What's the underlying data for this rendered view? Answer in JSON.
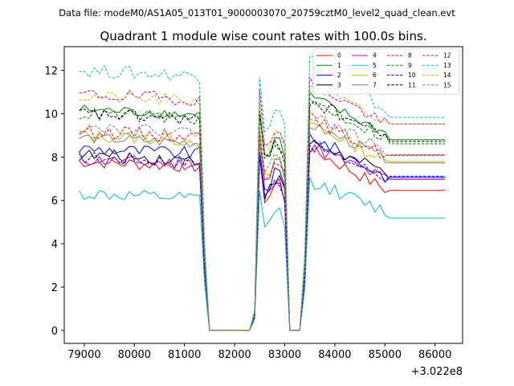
{
  "chart_data": {
    "type": "line",
    "suptitle": "Data file: modeM0/AS1A05_013T01_9000003070_20759cztM0_level2_quad_clean.evt",
    "title": "Quadrant 1 module wise count rates with 100.0s bins.",
    "xlabel": "",
    "ylabel": "",
    "x_offset_label": "+3.022e8",
    "xlim": [
      78600,
      86550
    ],
    "ylim": [
      -0.6,
      13.1
    ],
    "x_ticks": [
      79000,
      80000,
      81000,
      82000,
      83000,
      84000,
      85000,
      86000
    ],
    "y_ticks": [
      0,
      2,
      4,
      6,
      8,
      10,
      12
    ],
    "x_tick_labels": [
      "79000",
      "80000",
      "81000",
      "82000",
      "83000",
      "84000",
      "85000",
      "86000"
    ],
    "y_tick_labels": [
      "0",
      "2",
      "4",
      "6",
      "8",
      "10",
      "12"
    ],
    "x_start": 78900,
    "x_step": 100,
    "n_points": 74,
    "profile": {
      "segment1_points": 25,
      "drop_points": [
        0.35
      ],
      "zero_points": 9,
      "segment2_values": [
        0.08,
        1.0,
        0.78,
        0.8,
        0.86,
        0.86,
        0.78
      ],
      "gap_points": 3,
      "segment3_rise": [
        0.3
      ],
      "segment3_points": 17
    },
    "series": [
      {
        "name": "0",
        "color": "#ff0000",
        "dash": "solid",
        "level": 7.8,
        "amp": 0.3,
        "end_level": 6.4
      },
      {
        "name": "1",
        "color": "#008000",
        "dash": "solid",
        "level": 10.2,
        "amp": 0.25,
        "end_level": 9.0
      },
      {
        "name": "2",
        "color": "#0000ff",
        "dash": "solid",
        "level": 8.4,
        "amp": 0.3,
        "end_level": 7.0
      },
      {
        "name": "3",
        "color": "#000000",
        "dash": "solid",
        "level": 8.1,
        "amp": 0.3,
        "end_level": 7.2
      },
      {
        "name": "4",
        "color": "#bf00bf",
        "dash": "solid",
        "level": 7.9,
        "amp": 0.3,
        "end_level": 6.9
      },
      {
        "name": "5",
        "color": "#00bfbf",
        "dash": "solid",
        "level": 6.3,
        "amp": 0.3,
        "end_level": 5.4
      },
      {
        "name": "6",
        "color": "#bfbf00",
        "dash": "solid",
        "level": 9.0,
        "amp": 0.3,
        "end_level": 7.7
      },
      {
        "name": "7",
        "color": "#808080",
        "dash": "solid",
        "level": 8.9,
        "amp": 0.25,
        "end_level": 7.9
      },
      {
        "name": "8",
        "color": "#ff0000",
        "dash": "dashed",
        "level": 9.2,
        "amp": 0.3,
        "end_level": 8.0
      },
      {
        "name": "9",
        "color": "#008000",
        "dash": "dashed",
        "level": 10.0,
        "amp": 0.3,
        "end_level": 8.8
      },
      {
        "name": "10",
        "color": "#0000ff",
        "dash": "dashed",
        "level": 8.0,
        "amp": 0.3,
        "end_level": 7.0
      },
      {
        "name": "11",
        "color": "#000000",
        "dash": "dashed",
        "level": 10.0,
        "amp": 0.3,
        "end_level": 8.9
      },
      {
        "name": "12",
        "color": "#bf00bf",
        "dash": "dashed",
        "level": 10.9,
        "amp": 0.3,
        "end_level": 9.4
      },
      {
        "name": "13",
        "color": "#00bfbf",
        "dash": "dashed",
        "level": 12.0,
        "amp": 0.3,
        "end_level": 10.0
      },
      {
        "name": "14",
        "color": "#bfbf00",
        "dash": "dashed",
        "level": 10.8,
        "amp": 0.3,
        "end_level": 9.4
      },
      {
        "name": "15",
        "color": "#808080",
        "dash": "dashed",
        "level": 9.4,
        "amp": 0.25,
        "end_level": 8.2
      }
    ],
    "legend": {
      "location": "upper right",
      "columns": 4
    }
  }
}
